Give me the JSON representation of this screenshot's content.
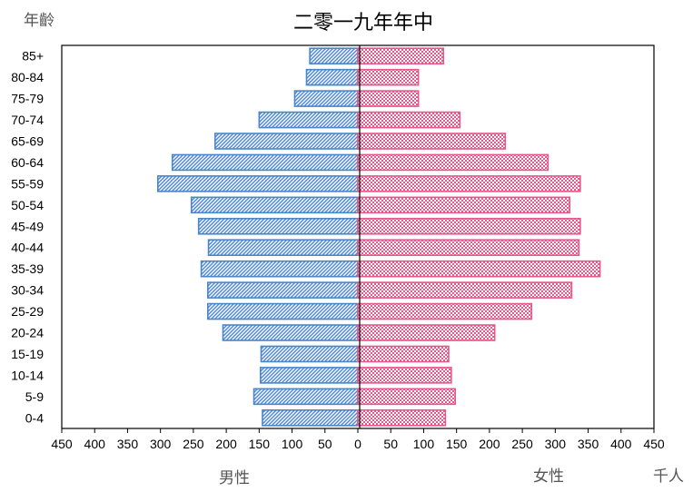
{
  "chart_data": {
    "type": "bar",
    "orientation": "horizontal-population-pyramid",
    "title": "二零一九年年中",
    "ylabel": "年齡",
    "unit": "千人",
    "categories": [
      "0-4",
      "5-9",
      "10-14",
      "15-19",
      "20-24",
      "25-29",
      "30-34",
      "35-39",
      "40-44",
      "45-49",
      "50-54",
      "55-59",
      "60-64",
      "65-69",
      "70-74",
      "75-79",
      "80-84",
      "85+"
    ],
    "series": [
      {
        "name": "男性",
        "side": "left",
        "color": "#4a86c8",
        "pattern": "diagonal-hatch",
        "values": [
          145,
          158,
          148,
          147,
          205,
          228,
          228,
          238,
          227,
          242,
          253,
          304,
          282,
          217,
          150,
          96,
          78,
          73
        ]
      },
      {
        "name": "女性",
        "side": "right",
        "color": "#e8578a",
        "pattern": "checker",
        "values": [
          133,
          148,
          142,
          138,
          208,
          264,
          325,
          368,
          336,
          338,
          322,
          338,
          289,
          224,
          155,
          92,
          92,
          130
        ]
      }
    ],
    "xlim": [
      -450,
      450
    ],
    "xticks": [
      "450",
      "400",
      "350",
      "300",
      "250",
      "200",
      "150",
      "100",
      "50",
      "0",
      "50",
      "100",
      "150",
      "200",
      "250",
      "300",
      "350",
      "400",
      "450"
    ],
    "grid": false,
    "legend": "below axis"
  }
}
